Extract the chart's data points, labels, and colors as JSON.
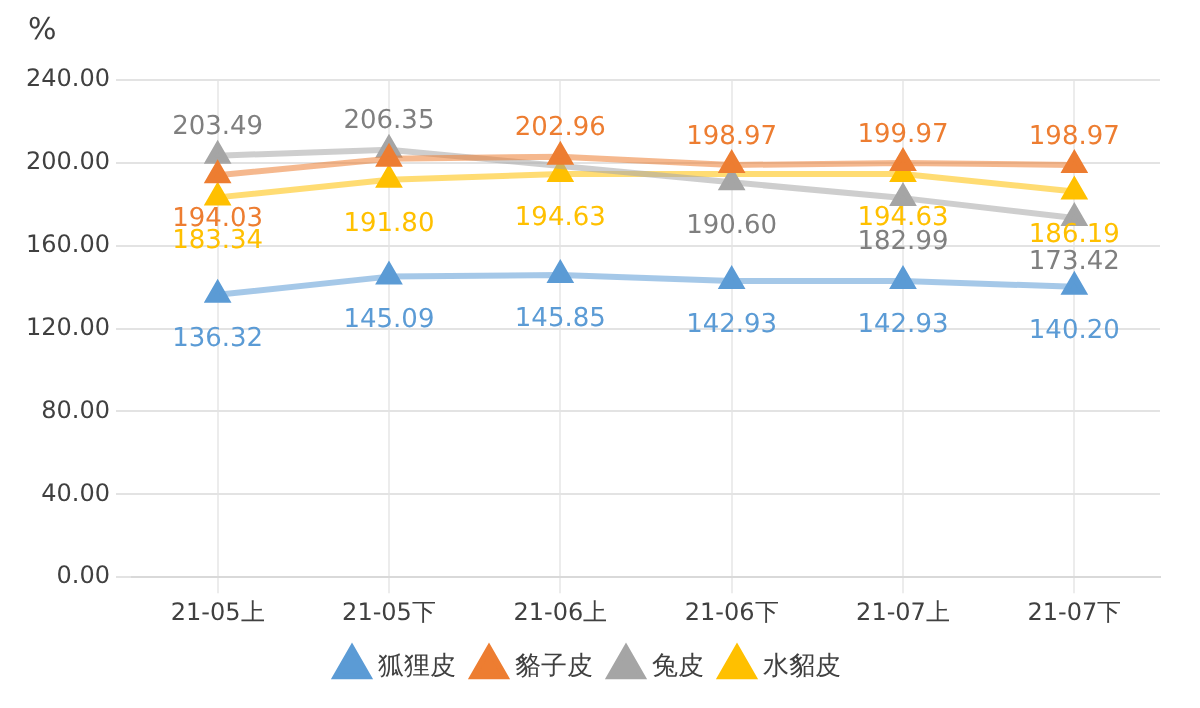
{
  "chart_data": {
    "type": "line",
    "ylabel": "%",
    "categories": [
      "21-05上",
      "21-05下",
      "21-06上",
      "21-06下",
      "21-07上",
      "21-07下"
    ],
    "series": [
      {
        "name": "狐狸皮",
        "color": "#5b9bd5",
        "values": [
          136.32,
          145.09,
          145.85,
          142.93,
          142.93,
          140.2
        ],
        "value_labels": [
          "136.32",
          "145.09",
          "145.85",
          "142.93",
          "142.93",
          "140.20"
        ]
      },
      {
        "name": "貉子皮",
        "color": "#ed7d31",
        "values": [
          194.03,
          202,
          202.96,
          198.97,
          199.97,
          198.97
        ],
        "value_labels": [
          "194.03",
          null,
          "202.96",
          "198.97",
          "199.97",
          "198.97"
        ]
      },
      {
        "name": "兔皮",
        "color": "#a5a5a5",
        "values": [
          203.49,
          206.35,
          null,
          190.6,
          182.99,
          173.42
        ],
        "value_labels": [
          "203.49",
          "206.35",
          null,
          "190.60",
          "182.99",
          "173.42"
        ]
      },
      {
        "name": "水貂皮",
        "color": "#ffc000",
        "values": [
          183.34,
          191.8,
          194.63,
          null,
          194.63,
          186.19
        ],
        "value_labels": [
          "183.34",
          "191.80",
          "194.63",
          null,
          "194.63",
          "186.19"
        ]
      }
    ],
    "ylim": [
      0,
      240
    ],
    "yticks": [
      {
        "value": 0,
        "label": "0.00"
      },
      {
        "value": 40,
        "label": "40.00"
      },
      {
        "value": 80,
        "label": "80.00"
      },
      {
        "value": 120,
        "label": "120.00"
      },
      {
        "value": 160,
        "label": "160.00"
      },
      {
        "value": 200,
        "label": "200.00"
      },
      {
        "value": 240,
        "label": "240.00"
      }
    ],
    "grid": true,
    "legend": "bottom",
    "marker": "triangle",
    "line_style": "solid"
  }
}
